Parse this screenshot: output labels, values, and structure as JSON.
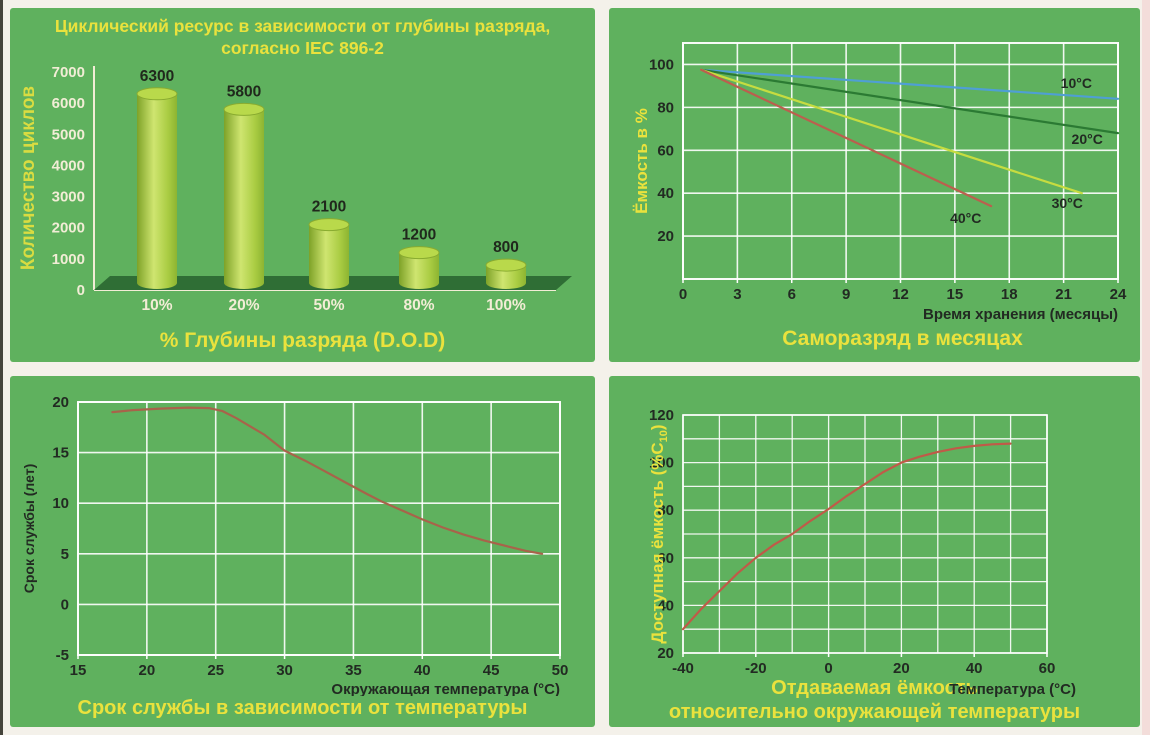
{
  "page": {
    "background": "#f4f1ea",
    "panel_color": "#5fb15e",
    "left_edge_color": "#45443c",
    "right_edge_color": "#f3ddda",
    "accent_yellow": "#eae23d",
    "cream_text": "#f2edd6",
    "dark_text": "#222a22"
  },
  "chart_data": [
    {
      "id": "cycles-dod",
      "type": "bar",
      "title_line1": "Циклический ресурс в зависимости от глубины разряда,",
      "title_line2": "согласно IEC 896-2",
      "categories": [
        "10%",
        "20%",
        "50%",
        "80%",
        "100%"
      ],
      "values": [
        6300,
        5800,
        2100,
        1200,
        800
      ],
      "value_labels": [
        "6300",
        "5800",
        "2100",
        "1200",
        "800"
      ],
      "xlabel": "% Глубины разряда (D.O.D)",
      "ylabel": "Количество циклов",
      "ylim": [
        0,
        7000
      ],
      "yticks": [
        0,
        1000,
        2000,
        3000,
        4000,
        5000,
        6000,
        7000
      ],
      "colors": {
        "bar_dark": "#7ea228",
        "bar_light": "#cfe570",
        "bar_mid": "#a9cc42",
        "bar_edge": "#8db431",
        "bar_top": "#b9d94b",
        "bar_top_rim": "#89ab30",
        "floor": "#2f6e35",
        "axis": "#f2edd6",
        "tick_text": "#f2edd6",
        "category_text": "#f2edd6",
        "value_text": "#20281c",
        "ylabel_color": "#d9dc41"
      }
    },
    {
      "id": "self-discharge",
      "type": "line",
      "title": "Саморазряд в месяцах",
      "xlabel": "Время хранения (месяцы)",
      "ylabel": "Ёмкость в %",
      "xlim": [
        0,
        24
      ],
      "ylim": [
        0,
        110
      ],
      "xticks": [
        0,
        3,
        6,
        9,
        12,
        15,
        18,
        21,
        24
      ],
      "yticks": [
        20,
        40,
        60,
        80,
        100
      ],
      "series": [
        {
          "name": "10°C",
          "color": "#4f9fd4",
          "points": [
            [
              1,
              97.5
            ],
            [
              24,
              84
            ]
          ]
        },
        {
          "name": "20°C",
          "color": "#2b7a33",
          "points": [
            [
              1,
              97.5
            ],
            [
              24,
              68
            ]
          ]
        },
        {
          "name": "30°C",
          "color": "#c6dc40",
          "points": [
            [
              1,
              97.5
            ],
            [
              22,
              40
            ]
          ]
        },
        {
          "name": "40°C",
          "color": "#bb5f4e",
          "points": [
            [
              1,
              97.5
            ],
            [
              17,
              34
            ]
          ]
        }
      ],
      "series_labels": [
        {
          "text": "10°C",
          "x": 21.7,
          "y": 89
        },
        {
          "text": "20°C",
          "x": 22.3,
          "y": 63
        },
        {
          "text": "30°C",
          "x": 21.2,
          "y": 33
        },
        {
          "text": "40°C",
          "x": 15.6,
          "y": 26
        }
      ],
      "colors": {
        "grid": "#ffffff",
        "tick_text": "#222a22",
        "axis_label": "#222a22",
        "ylabel_color": "#eae23d",
        "label_text": "#222a22"
      }
    },
    {
      "id": "service-life",
      "type": "line",
      "title": "Срок службы в зависимости от температуры",
      "xlabel": "Окружающая температура (°C)",
      "ylabel": "Срок службы (лет)",
      "xlim": [
        15,
        50
      ],
      "ylim": [
        -5,
        20
      ],
      "xticks": [
        15,
        20,
        25,
        30,
        35,
        40,
        45,
        50
      ],
      "yticks": [
        -5,
        0,
        5,
        10,
        15,
        20
      ],
      "series": [
        {
          "name": "срок службы",
          "color": "#a8634a",
          "points": [
            [
              17.5,
              19.0
            ],
            [
              19,
              19.2
            ],
            [
              21,
              19.35
            ],
            [
              23,
              19.45
            ],
            [
              24.5,
              19.4
            ],
            [
              25.5,
              19.1
            ],
            [
              26.5,
              18.4
            ],
            [
              27.5,
              17.6
            ],
            [
              28.5,
              16.8
            ],
            [
              30,
              15.2
            ],
            [
              31.5,
              14.2
            ],
            [
              33,
              13.1
            ],
            [
              34.5,
              12.0
            ],
            [
              36,
              10.9
            ],
            [
              37,
              10.2
            ],
            [
              38.5,
              9.3
            ],
            [
              40,
              8.4
            ],
            [
              41.5,
              7.6
            ],
            [
              43,
              6.9
            ],
            [
              44.5,
              6.3
            ],
            [
              46,
              5.8
            ],
            [
              47.5,
              5.3
            ],
            [
              48.7,
              5.0
            ]
          ]
        }
      ],
      "series_labels": [],
      "colors": {
        "grid": "#ffffff",
        "tick_text": "#222a22",
        "axis_label": "#222a22",
        "ylabel_color": "#222a22",
        "label_text": "#222a22"
      }
    },
    {
      "id": "available-capacity",
      "type": "line",
      "title_line1": "Отдаваемая ёмкость",
      "title_line2": "относительно окружающей температуры",
      "xlabel": "Температура (°C)",
      "ylabel": "Доступная ёмкость (%C10)",
      "ylabel_parts": {
        "pre": "Доступная ёмкость (%C",
        "sub": "10",
        "post": ")"
      },
      "xlim": [
        -40,
        60
      ],
      "ylim": [
        20,
        120
      ],
      "xticks": [
        -40,
        -20,
        0,
        20,
        40,
        60
      ],
      "yticks": [
        20,
        40,
        60,
        80,
        100,
        120
      ],
      "minor_step_x": 10,
      "minor_step_y": 10,
      "series": [
        {
          "name": "доступная ёмкость",
          "color": "#c05a48",
          "points": [
            [
              -40,
              30
            ],
            [
              -35,
              38.5
            ],
            [
              -30,
              46
            ],
            [
              -25,
              53.5
            ],
            [
              -20,
              60
            ],
            [
              -15,
              65.5
            ],
            [
              -10,
              70
            ],
            [
              -5,
              75.5
            ],
            [
              0,
              80.5
            ],
            [
              5,
              86
            ],
            [
              10,
              91
            ],
            [
              15,
              96
            ],
            [
              20,
              100
            ],
            [
              25,
              102.5
            ],
            [
              30,
              104.5
            ],
            [
              35,
              106
            ],
            [
              40,
              107
            ],
            [
              45,
              107.7
            ],
            [
              50,
              108
            ]
          ]
        }
      ],
      "series_labels": [],
      "colors": {
        "grid": "#ffffff",
        "tick_text": "#222a22",
        "axis_label": "#222a22",
        "ylabel_color": "#eae23d",
        "label_text": "#222a22"
      }
    }
  ]
}
